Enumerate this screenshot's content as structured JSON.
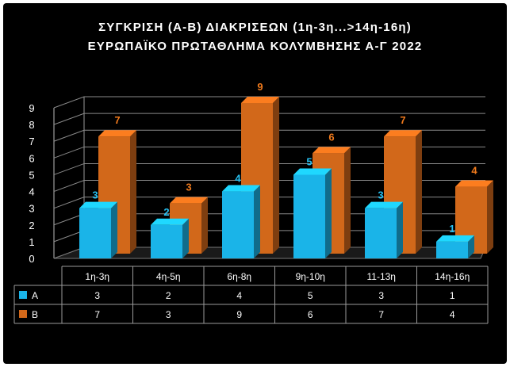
{
  "chart_data": {
    "type": "bar",
    "title": "ΣΥΓΚΡΙΣΗ (Α-Β) ΔΙΑΚΡΙΣΕΩΝ (1η-3η...>14η-16η)",
    "subtitle": "ΕΥΡΩΠΑΪΚΟ ΠΡΩΤΑΘΛΗΜΑ ΚΟΛΥΜΒΗΣΗΣ Α-Γ 2022",
    "categories": [
      "1η-3η",
      "4η-5η",
      "6η-8η",
      "9η-10η",
      "11-13η",
      "14η-16η"
    ],
    "series": [
      {
        "name": "Α",
        "values": [
          3,
          2,
          4,
          5,
          3,
          1
        ],
        "color": "#1ab4e8"
      },
      {
        "name": "Β",
        "values": [
          7,
          3,
          9,
          6,
          7,
          4
        ],
        "color": "#d2681a"
      }
    ],
    "ylim": [
      0,
      9
    ],
    "yticks": [
      "0",
      "1",
      "2",
      "3",
      "4",
      "5",
      "6",
      "7",
      "8",
      "9"
    ],
    "grid": true,
    "style": "3d-column",
    "legend": "data-table",
    "colors": {
      "background": "#000000",
      "label_a": "#27c0f0",
      "label_b": "#f07a1c"
    }
  }
}
